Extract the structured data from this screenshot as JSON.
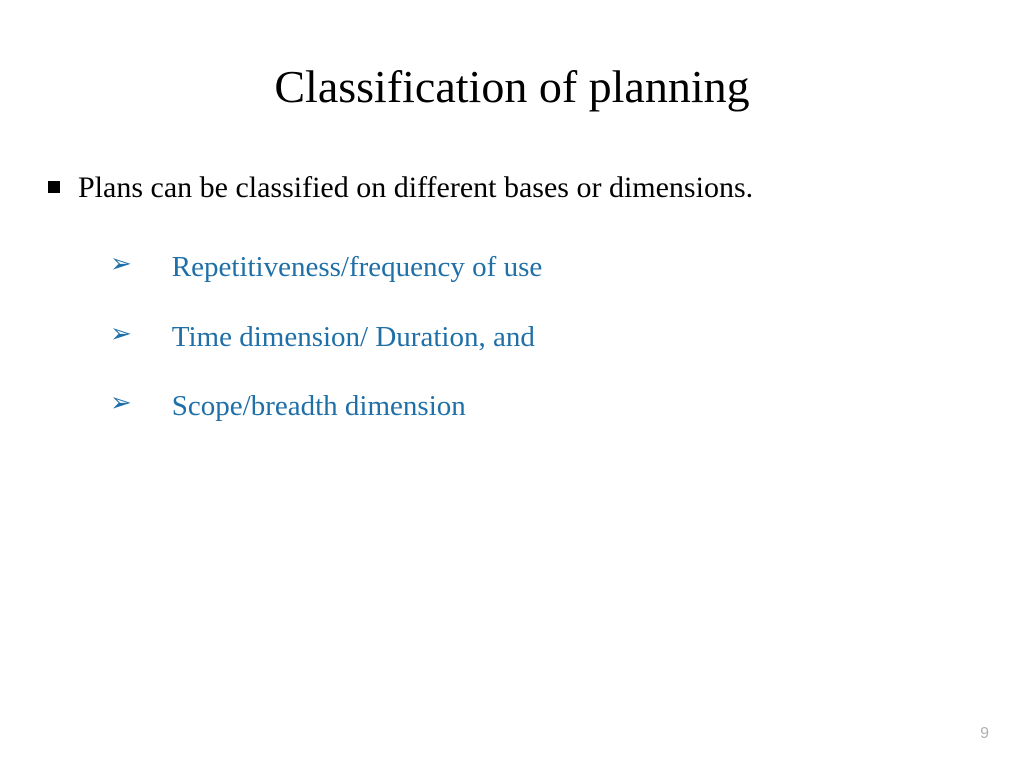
{
  "slide": {
    "title": "Classification of planning",
    "main_bullet_text": "Plans can be classified on different bases or dimensions.",
    "sub_items": [
      "Repetitiveness/frequency of use",
      "Time dimension/ Duration, and",
      "Scope/breadth dimension"
    ],
    "page_number": "9"
  },
  "styling": {
    "background_color": "#ffffff",
    "title_color": "#000000",
    "title_fontsize": 46,
    "main_text_color": "#000000",
    "main_text_fontsize": 30,
    "sub_text_color": "#1f6fa8",
    "sub_text_fontsize": 29,
    "arrow_color": "#1f6fa8",
    "page_number_color": "#b0b0b0",
    "page_number_fontsize": 16,
    "font_family": "Georgia, Times New Roman, serif"
  }
}
